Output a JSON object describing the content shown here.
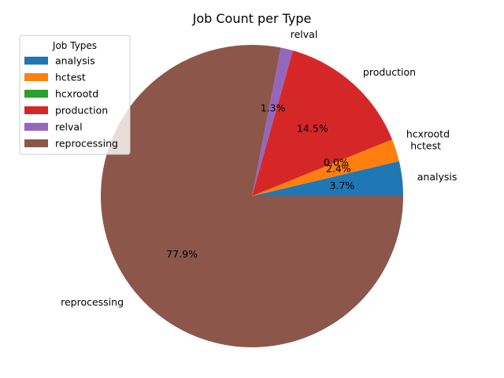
{
  "chart_data": {
    "type": "pie",
    "title": "Job Count per Type",
    "categories": [
      "analysis",
      "hctest",
      "hcxrootd",
      "production",
      "relval",
      "reprocessing"
    ],
    "values": [
      3.7,
      2.4,
      0.0,
      14.5,
      1.3,
      77.9
    ],
    "percent_labels": [
      "3.7%",
      "2.4%",
      "0.0%",
      "14.5%",
      "1.3%",
      "77.9%"
    ],
    "colors": [
      "#1f77b4",
      "#ff7f0e",
      "#2ca02c",
      "#d62728",
      "#9467bd",
      "#8c564b"
    ],
    "legend": {
      "title": "Job Types",
      "placement": "top-left",
      "entries": [
        "analysis",
        "hctest",
        "hcxrootd",
        "production",
        "relval",
        "reprocessing"
      ]
    },
    "start_angle_deg": 0,
    "direction": "counterclockwise"
  }
}
